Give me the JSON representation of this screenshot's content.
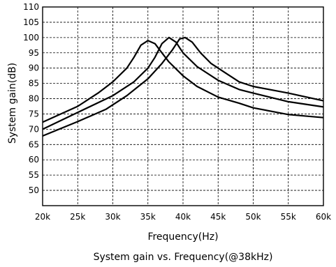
{
  "chart_data": {
    "type": "line",
    "title": "System gain vs. Frequency(@38kHz)",
    "xlabel": "Frequency(Hz)",
    "ylabel": "System gain(dB)",
    "xlim": [
      20,
      60
    ],
    "ylim": [
      45,
      110
    ],
    "x_ticks": [
      20,
      25,
      30,
      35,
      40,
      45,
      50,
      55,
      60
    ],
    "x_tick_labels": [
      "20k",
      "25k",
      "30k",
      "35k",
      "40k",
      "45k",
      "50k",
      "55k",
      "60k"
    ],
    "y_ticks": [
      50,
      55,
      60,
      65,
      70,
      75,
      80,
      85,
      90,
      95,
      100,
      105,
      110
    ],
    "y_tick_labels": [
      "50",
      "55",
      "60",
      "65",
      "70",
      "75",
      "80",
      "85",
      "90",
      "95",
      "100",
      "105",
      "110"
    ],
    "grid": true,
    "line_color": "#000000",
    "series": [
      {
        "points": [
          [
            20,
            72.3
          ],
          [
            25,
            77.5
          ],
          [
            28,
            82
          ],
          [
            30,
            85.5
          ],
          [
            32,
            90
          ],
          [
            33,
            93.5
          ],
          [
            34,
            97.5
          ],
          [
            35,
            99
          ],
          [
            36,
            98
          ],
          [
            37,
            95
          ],
          [
            38,
            92
          ],
          [
            40,
            87.5
          ],
          [
            42,
            84
          ],
          [
            45,
            80.5
          ],
          [
            48,
            78.5
          ],
          [
            50,
            77
          ],
          [
            55,
            74.8
          ],
          [
            60,
            73.8
          ]
        ]
      },
      {
        "points": [
          [
            20,
            70
          ],
          [
            25,
            75.5
          ],
          [
            30,
            81
          ],
          [
            33,
            85.5
          ],
          [
            35,
            90
          ],
          [
            36,
            93.5
          ],
          [
            37,
            98
          ],
          [
            38,
            100
          ],
          [
            39,
            98.5
          ],
          [
            40,
            95
          ],
          [
            42,
            90.5
          ],
          [
            45,
            86
          ],
          [
            48,
            83
          ],
          [
            50,
            81.8
          ],
          [
            55,
            79
          ],
          [
            60,
            77.3
          ]
        ]
      },
      {
        "points": [
          [
            20,
            67.8
          ],
          [
            25,
            72.5
          ],
          [
            29,
            76.5
          ],
          [
            32,
            81
          ],
          [
            35,
            86.5
          ],
          [
            37,
            91.5
          ],
          [
            38.5,
            96
          ],
          [
            39.5,
            99.5
          ],
          [
            40.3,
            100
          ],
          [
            41.3,
            98.5
          ],
          [
            42.5,
            95
          ],
          [
            44,
            91.5
          ],
          [
            46,
            88.5
          ],
          [
            48,
            85.5
          ],
          [
            50,
            84
          ],
          [
            55,
            81.8
          ],
          [
            60,
            79.3
          ]
        ]
      }
    ]
  }
}
